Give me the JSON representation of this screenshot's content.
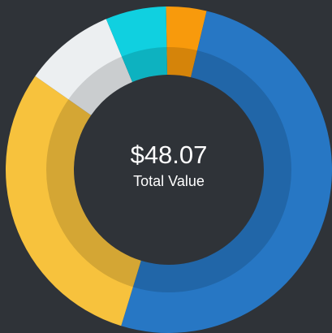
{
  "chart_data": {
    "type": "donut",
    "center_value": "$48.07",
    "center_label": "Total Value",
    "values": [
      4,
      51,
      30,
      9,
      6
    ],
    "colors": [
      "#f89a0c",
      "#2777c4",
      "#f7c23d",
      "#eceff1",
      "#10d0e0"
    ]
  }
}
